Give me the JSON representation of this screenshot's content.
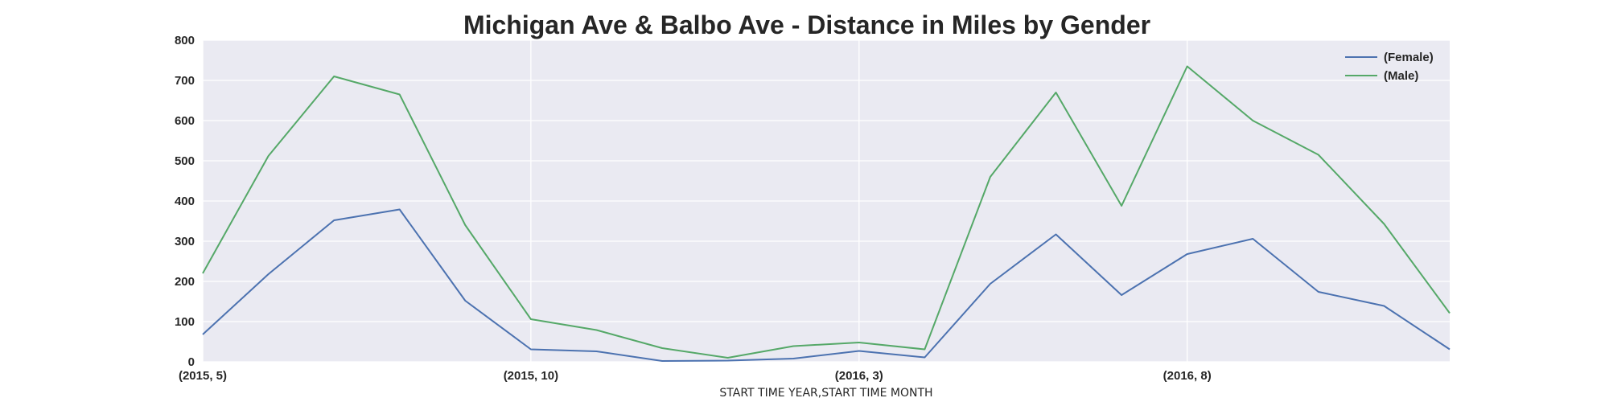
{
  "chart_data": {
    "type": "line",
    "title": "Michigan Ave & Balbo Ave - Distance in Miles by Gender",
    "xlabel": "START TIME YEAR,START TIME MONTH",
    "ylabel": "",
    "ylim": [
      0,
      800
    ],
    "yticks": [
      0,
      100,
      200,
      300,
      400,
      500,
      600,
      700,
      800
    ],
    "x": [
      "(2015, 5)",
      "(2015, 6)",
      "(2015, 7)",
      "(2015, 8)",
      "(2015, 9)",
      "(2015, 10)",
      "(2015, 11)",
      "(2015, 12)",
      "(2016, 1)",
      "(2016, 2)",
      "(2016, 3)",
      "(2016, 4)",
      "(2016, 5)",
      "(2016, 6)",
      "(2016, 7)",
      "(2016, 8)",
      "(2016, 9)",
      "(2016, 10)",
      "(2016, 11)",
      "(2016, 12)"
    ],
    "xtick_labels": [
      "(2015, 5)",
      "(2015, 10)",
      "(2016, 3)",
      "(2016, 8)"
    ],
    "grid": true,
    "legend_position": "top-right",
    "series": [
      {
        "name": "(Female)",
        "color": "#4c72b0",
        "values": [
          68,
          218,
          352,
          379,
          152,
          31,
          26,
          2,
          3,
          8,
          27,
          11,
          194,
          317,
          166,
          268,
          306,
          174,
          139,
          31
        ]
      },
      {
        "name": "(Male)",
        "color": "#55a868",
        "values": [
          220,
          512,
          710,
          665,
          340,
          106,
          79,
          34,
          10,
          39,
          48,
          31,
          460,
          670,
          388,
          735,
          600,
          515,
          343,
          121
        ]
      }
    ]
  }
}
